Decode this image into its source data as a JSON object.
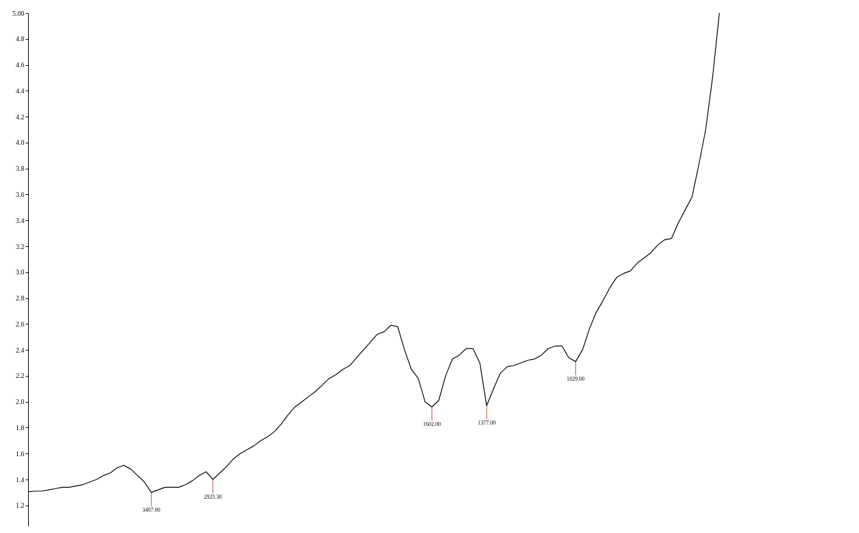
{
  "chart_data": {
    "type": "line",
    "categories": [
      null,
      null,
      null,
      null,
      null,
      null,
      null,
      null,
      null,
      null,
      null,
      null,
      null,
      null,
      null,
      null,
      null,
      null,
      null,
      null,
      null,
      null,
      null,
      null,
      null,
      null,
      null,
      null,
      null,
      null,
      null,
      null,
      null,
      null,
      null,
      null,
      null,
      null,
      null,
      null,
      null,
      null,
      null,
      null,
      null,
      null,
      null,
      null,
      null,
      null,
      null,
      null,
      null,
      null,
      null,
      null,
      null,
      null,
      null,
      null,
      null,
      null,
      null,
      null,
      null,
      null,
      null,
      null,
      null,
      null,
      null,
      null,
      null,
      null,
      null,
      null,
      null,
      null,
      null,
      null,
      null,
      null,
      null,
      null,
      null,
      null,
      null,
      null,
      null,
      null,
      null,
      null,
      null,
      null,
      null,
      null,
      null,
      null,
      null,
      null,
      null,
      null,
      null,
      null,
      null,
      null,
      null,
      null,
      null,
      null,
      null,
      null,
      null,
      null,
      null,
      null,
      null,
      null,
      null,
      null,
      null,
      null
    ],
    "series": [
      {
        "color": "#000000",
        "values": [
          1.305,
          1.31,
          1.31,
          1.32,
          1.33,
          1.34,
          1.34,
          1.35,
          1.36,
          1.38,
          1.4,
          1.43,
          1.45,
          1.49,
          1.51,
          1.48,
          1.43,
          1.38,
          1.3,
          1.32,
          1.34,
          1.34,
          1.34,
          1.36,
          1.39,
          1.43,
          1.46,
          1.4,
          1.45,
          1.5,
          1.56,
          1.6,
          1.63,
          1.66,
          1.7,
          1.73,
          1.77,
          1.83,
          1.9,
          1.96,
          2.0,
          2.04,
          2.08,
          2.13,
          2.18,
          2.21,
          2.25,
          2.28,
          2.34,
          2.4,
          2.46,
          2.52,
          2.54,
          2.59,
          2.58,
          2.4,
          2.25,
          2.18,
          2.0,
          1.96,
          2.01,
          2.2,
          2.33,
          2.36,
          2.41,
          2.41,
          2.3,
          1.97,
          2.1,
          2.22,
          2.27,
          2.28,
          2.3,
          2.32,
          2.33,
          2.36,
          2.41,
          2.43,
          2.43,
          2.34,
          2.31,
          2.4,
          2.56,
          2.69,
          2.78,
          2.88,
          2.96,
          2.99,
          3.01,
          3.07,
          3.11,
          3.15,
          3.21,
          3.25,
          3.26,
          3.38,
          3.48,
          3.58,
          3.83,
          4.1,
          4.5,
          5.0,
          null,
          null,
          null,
          null,
          null,
          null,
          null,
          null,
          null,
          null,
          null,
          null,
          null,
          null,
          null,
          null,
          null,
          null,
          null,
          null
        ]
      }
    ],
    "annotations": [
      {
        "text": "3407.00",
        "y": 1.3
      },
      {
        "text": "2925.30",
        "y": 1.4
      },
      {
        "text": "1602.00",
        "y": 1.96
      },
      {
        "text": "1377.00",
        "y": 1.97
      },
      {
        "text": "1029.00",
        "y": 2.31
      }
    ],
    "ylim": [
      1.04,
      5.0
    ],
    "yticks": [
      1.2,
      1.4,
      1.6,
      1.8,
      {
        "value": 2.0,
        "label": "2.0"
      },
      2.2,
      2.4,
      2.6,
      2.8,
      {
        "value": 3.0,
        "label": "3.0"
      },
      3.2,
      3.4,
      3.6,
      3.8,
      {
        "value": 4.0,
        "label": "4.0"
      },
      4.2,
      4.4,
      4.6,
      4.8,
      {
        "value": 5.0,
        "label": "5.00"
      }
    ],
    "grid": false,
    "marker": "none",
    "line_style": "solid",
    "tick_labels": "y"
  }
}
